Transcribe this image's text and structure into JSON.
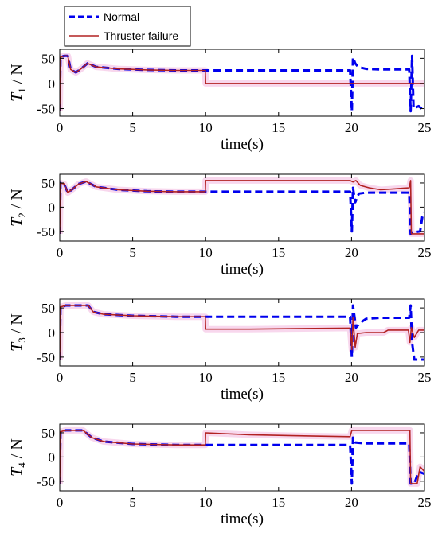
{
  "legend": [
    {
      "label": "Normal",
      "color": "#0000ee",
      "style": "dashed"
    },
    {
      "label": "Thruster failure",
      "color": "#b22222",
      "style": "solid"
    }
  ],
  "chart_data": [
    {
      "type": "line",
      "ylabel": {
        "sym": "T",
        "sub": "1",
        "unit": " / N"
      },
      "xlabel": "time(s)",
      "xlim": [
        0,
        25
      ],
      "ylim": [
        -65,
        68
      ],
      "xticks": [
        0,
        5,
        10,
        15,
        20,
        25
      ],
      "yticks": [
        -50,
        0,
        50
      ],
      "series": [
        {
          "name": "Normal",
          "points": [
            [
              0,
              -55
            ],
            [
              0.05,
              52
            ],
            [
              0.3,
              55
            ],
            [
              0.55,
              55
            ],
            [
              0.75,
              28
            ],
            [
              1.1,
              22
            ],
            [
              1.5,
              30
            ],
            [
              1.9,
              40
            ],
            [
              2.5,
              33
            ],
            [
              4,
              29
            ],
            [
              6,
              27
            ],
            [
              8,
              26
            ],
            [
              10,
              26
            ],
            [
              12,
              26
            ],
            [
              15,
              26
            ],
            [
              18,
              26
            ],
            [
              19.9,
              26
            ],
            [
              20.02,
              -55
            ],
            [
              20.1,
              52
            ],
            [
              20.25,
              40
            ],
            [
              20.45,
              33
            ],
            [
              21,
              29
            ],
            [
              22,
              28
            ],
            [
              23,
              28
            ],
            [
              23.95,
              28
            ],
            [
              24.05,
              -55
            ],
            [
              24.15,
              55
            ],
            [
              24.25,
              -50
            ],
            [
              24.6,
              -45
            ],
            [
              25,
              -55
            ]
          ]
        },
        {
          "name": "Thruster failure",
          "points": [
            [
              0,
              -55
            ],
            [
              0.05,
              52
            ],
            [
              0.3,
              55
            ],
            [
              0.55,
              55
            ],
            [
              0.75,
              28
            ],
            [
              1.1,
              22
            ],
            [
              1.5,
              30
            ],
            [
              1.9,
              40
            ],
            [
              2.5,
              33
            ],
            [
              4,
              29
            ],
            [
              6,
              27
            ],
            [
              8,
              26
            ],
            [
              9.98,
              26
            ],
            [
              10,
              0
            ],
            [
              25,
              0
            ]
          ]
        }
      ]
    },
    {
      "type": "line",
      "ylabel": {
        "sym": "T",
        "sub": "2",
        "unit": " / N"
      },
      "xlabel": "time(s)",
      "xlim": [
        0,
        25
      ],
      "ylim": [
        -70,
        68
      ],
      "xticks": [
        0,
        5,
        10,
        15,
        20,
        25
      ],
      "yticks": [
        -50,
        0,
        50
      ],
      "series": [
        {
          "name": "Normal",
          "points": [
            [
              0,
              -55
            ],
            [
              0.05,
              50
            ],
            [
              0.3,
              48
            ],
            [
              0.55,
              30
            ],
            [
              0.9,
              38
            ],
            [
              1.3,
              48
            ],
            [
              1.8,
              53
            ],
            [
              2.5,
              42
            ],
            [
              4,
              36
            ],
            [
              6,
              33
            ],
            [
              8,
              32
            ],
            [
              10,
              32
            ],
            [
              13,
              32
            ],
            [
              16,
              32
            ],
            [
              19.9,
              32
            ],
            [
              20.02,
              -50
            ],
            [
              20.1,
              40
            ],
            [
              20.25,
              10
            ],
            [
              20.5,
              28
            ],
            [
              21,
              30
            ],
            [
              22,
              30
            ],
            [
              23,
              30
            ],
            [
              23.95,
              30
            ],
            [
              24.05,
              -55
            ],
            [
              24.2,
              -52
            ],
            [
              24.7,
              -50
            ],
            [
              24.85,
              -20
            ],
            [
              25,
              -10
            ]
          ]
        },
        {
          "name": "Thruster failure",
          "points": [
            [
              0,
              -55
            ],
            [
              0.05,
              50
            ],
            [
              0.3,
              48
            ],
            [
              0.55,
              30
            ],
            [
              0.9,
              38
            ],
            [
              1.3,
              48
            ],
            [
              1.8,
              53
            ],
            [
              2.5,
              42
            ],
            [
              4,
              36
            ],
            [
              6,
              33
            ],
            [
              8,
              32
            ],
            [
              9.98,
              32
            ],
            [
              10,
              55
            ],
            [
              12,
              55
            ],
            [
              15,
              55
            ],
            [
              19.9,
              55
            ],
            [
              20.1,
              52
            ],
            [
              20.3,
              55
            ],
            [
              20.6,
              45
            ],
            [
              21.2,
              40
            ],
            [
              22,
              36
            ],
            [
              23,
              38
            ],
            [
              23.95,
              40
            ],
            [
              24.05,
              55
            ],
            [
              24.1,
              -55
            ],
            [
              25,
              -55
            ]
          ]
        }
      ]
    },
    {
      "type": "line",
      "ylabel": {
        "sym": "T",
        "sub": "3",
        "unit": " / N"
      },
      "xlabel": "time(s)",
      "xlim": [
        0,
        25
      ],
      "ylim": [
        -68,
        68
      ],
      "xticks": [
        0,
        5,
        10,
        15,
        20,
        25
      ],
      "yticks": [
        -50,
        0,
        50
      ],
      "series": [
        {
          "name": "Normal",
          "points": [
            [
              0,
              -55
            ],
            [
              0.05,
              52
            ],
            [
              0.4,
              55
            ],
            [
              1.5,
              55
            ],
            [
              1.95,
              55
            ],
            [
              2.3,
              42
            ],
            [
              3,
              37
            ],
            [
              5,
              34
            ],
            [
              8,
              32
            ],
            [
              10,
              32
            ],
            [
              13,
              32
            ],
            [
              16,
              32
            ],
            [
              19.9,
              32
            ],
            [
              20.02,
              -50
            ],
            [
              20.1,
              55
            ],
            [
              20.3,
              10
            ],
            [
              20.6,
              20
            ],
            [
              21,
              28
            ],
            [
              22,
              30
            ],
            [
              23,
              30
            ],
            [
              23.95,
              30
            ],
            [
              24.05,
              55
            ],
            [
              24.15,
              -20
            ],
            [
              24.3,
              -55
            ],
            [
              25,
              -55
            ]
          ]
        },
        {
          "name": "Thruster failure",
          "points": [
            [
              0,
              -55
            ],
            [
              0.05,
              52
            ],
            [
              0.4,
              55
            ],
            [
              1.5,
              55
            ],
            [
              1.95,
              55
            ],
            [
              2.3,
              42
            ],
            [
              3,
              37
            ],
            [
              5,
              34
            ],
            [
              8,
              32
            ],
            [
              9.98,
              32
            ],
            [
              10,
              7
            ],
            [
              13,
              7
            ],
            [
              16,
              8
            ],
            [
              19.9,
              9
            ],
            [
              20.02,
              -35
            ],
            [
              20.1,
              30
            ],
            [
              20.25,
              -30
            ],
            [
              20.4,
              -2
            ],
            [
              21,
              0
            ],
            [
              22,
              0
            ],
            [
              22.2,
              0
            ],
            [
              22.5,
              5
            ],
            [
              23.9,
              5
            ],
            [
              24.0,
              -20
            ],
            [
              24.1,
              10
            ],
            [
              24.3,
              -10
            ],
            [
              24.6,
              5
            ],
            [
              25,
              5
            ]
          ]
        }
      ]
    },
    {
      "type": "line",
      "ylabel": {
        "sym": "T",
        "sub": "4",
        "unit": " / N"
      },
      "xlabel": "time(s)",
      "xlim": [
        0,
        25
      ],
      "ylim": [
        -70,
        68
      ],
      "xticks": [
        0,
        5,
        10,
        15,
        20,
        25
      ],
      "yticks": [
        -50,
        0,
        50
      ],
      "series": [
        {
          "name": "Normal",
          "points": [
            [
              0,
              -55
            ],
            [
              0.05,
              52
            ],
            [
              0.4,
              55
            ],
            [
              1.6,
              55
            ],
            [
              2.2,
              40
            ],
            [
              3,
              32
            ],
            [
              5,
              27
            ],
            [
              8,
              25
            ],
            [
              10,
              25
            ],
            [
              13,
              25
            ],
            [
              16,
              25
            ],
            [
              19.9,
              25
            ],
            [
              20.02,
              -55
            ],
            [
              20.1,
              40
            ],
            [
              20.25,
              30
            ],
            [
              21,
              28
            ],
            [
              22,
              28
            ],
            [
              23,
              28
            ],
            [
              23.95,
              28
            ],
            [
              24.05,
              -55
            ],
            [
              24.3,
              -55
            ],
            [
              24.6,
              -30
            ],
            [
              25,
              -35
            ]
          ]
        },
        {
          "name": "Thruster failure",
          "points": [
            [
              0,
              -55
            ],
            [
              0.05,
              52
            ],
            [
              0.4,
              55
            ],
            [
              1.6,
              55
            ],
            [
              2.2,
              40
            ],
            [
              3,
              32
            ],
            [
              5,
              27
            ],
            [
              8,
              25
            ],
            [
              9.98,
              25
            ],
            [
              10,
              50
            ],
            [
              13,
              46
            ],
            [
              16,
              44
            ],
            [
              19.9,
              42
            ],
            [
              20.02,
              55
            ],
            [
              24,
              55
            ],
            [
              24.05,
              -55
            ],
            [
              24.5,
              -55
            ],
            [
              24.7,
              -20
            ],
            [
              25,
              -30
            ]
          ]
        }
      ]
    }
  ]
}
